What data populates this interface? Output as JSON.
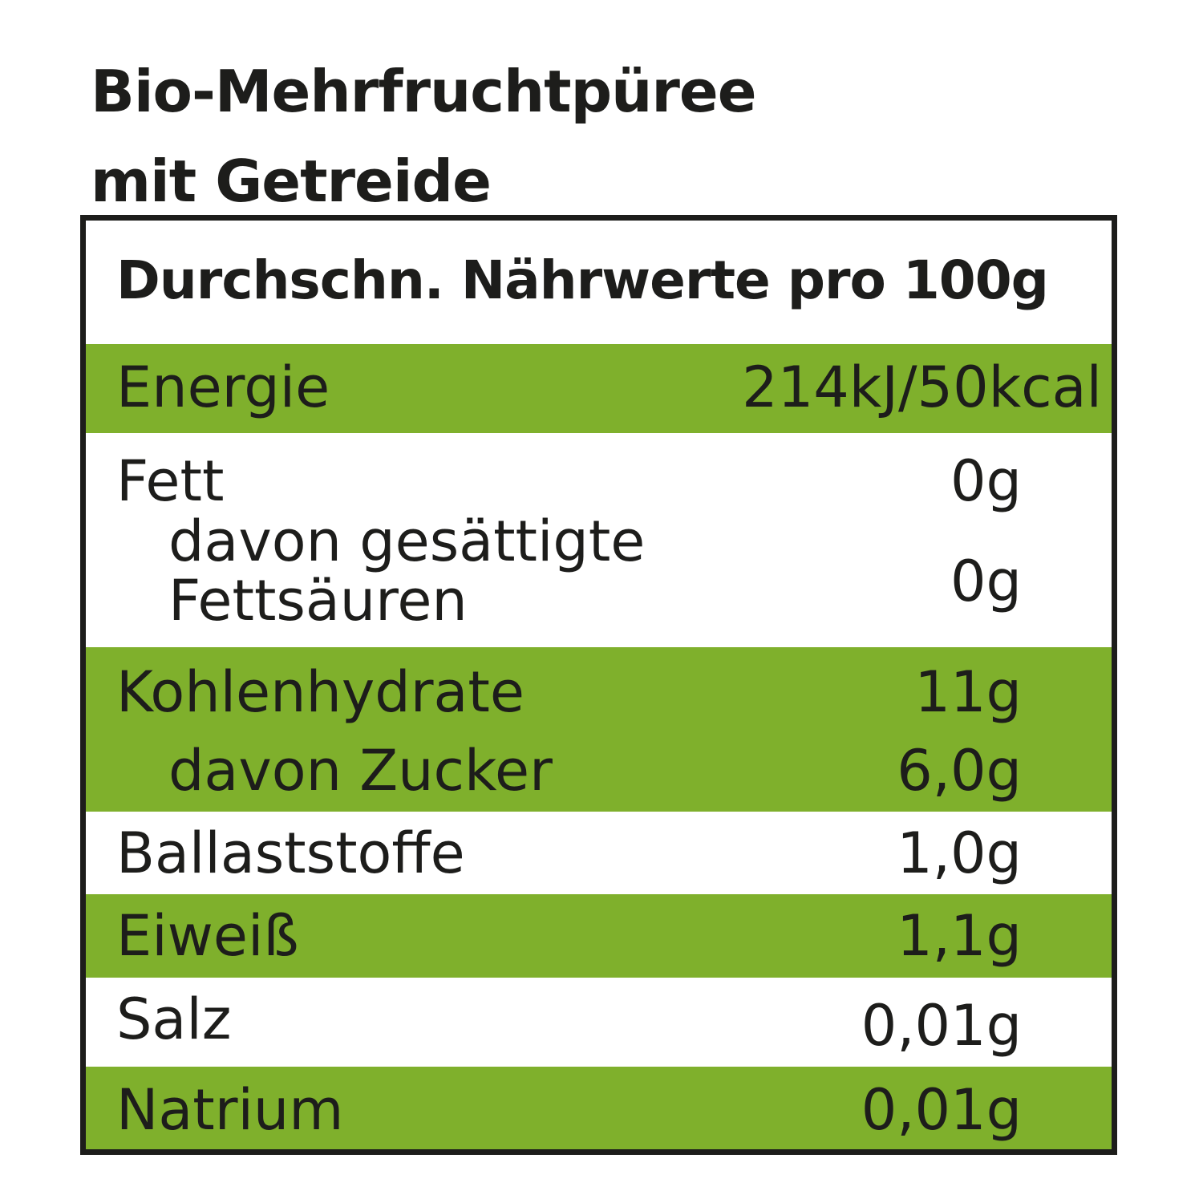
{
  "title_lines": [
    "Bio-Mehrfruchtpüree",
    "mit Getreide"
  ],
  "table": {
    "header": "Durchschn. Nährwerte pro 100g",
    "rows": [
      {
        "label": "Energie",
        "value": "214kJ/50kcal"
      },
      {
        "label": "Fett",
        "value": "0g"
      },
      {
        "label_lines": [
          "davon gesättigte",
          "Fettsäuren"
        ],
        "value": "0g"
      },
      {
        "label": "Kohlenhydrate",
        "value": "11g"
      },
      {
        "label": "davon Zucker",
        "value": "6,0g"
      },
      {
        "label": "Ballaststoffe",
        "value": "1,0g"
      },
      {
        "label": "Eiweiß",
        "value": "1,1g"
      },
      {
        "label": "Salz",
        "value": "0,01g"
      },
      {
        "label": "Natrium",
        "value": "0,01g"
      }
    ]
  },
  "colors": {
    "green": "#7fb02c",
    "text": "#1d1d1b"
  }
}
